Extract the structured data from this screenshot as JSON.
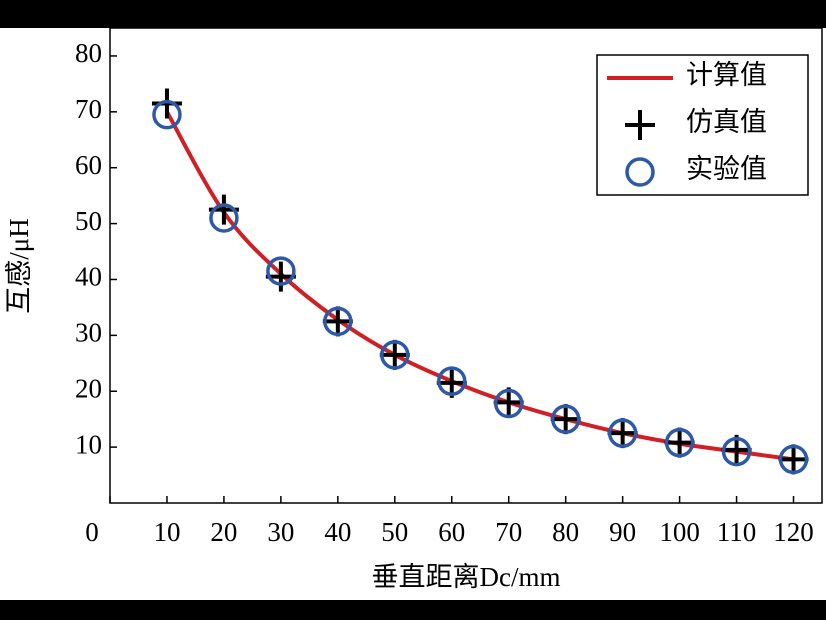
{
  "chart_data": {
    "type": "line",
    "x_label": "垂直距离Dc/mm",
    "y_label": "互感/μH",
    "x": [
      10,
      20,
      30,
      40,
      50,
      60,
      70,
      80,
      90,
      100,
      110,
      120
    ],
    "series": [
      {
        "name": "计算值",
        "color": "#d11f26",
        "marker": "line",
        "values": [
          70,
          52,
          41,
          32.8,
          26.5,
          21.8,
          18,
          15,
          12.5,
          10.6,
          9.2,
          7.8
        ]
      },
      {
        "name": "仿真值",
        "color": "#000000",
        "marker": "plus",
        "values": [
          71.5,
          52.5,
          40.5,
          32.5,
          26.5,
          21.5,
          18,
          15,
          12.5,
          10.8,
          9.5,
          7.8
        ]
      },
      {
        "name": "实验值",
        "color": "#2e59a8",
        "marker": "circle",
        "values": [
          69.5,
          51,
          41.5,
          32.5,
          26.5,
          21.8,
          17.8,
          15,
          12.5,
          10.8,
          9.2,
          7.8
        ]
      }
    ],
    "xlim": [
      0,
      125
    ],
    "ylim": [
      0,
      85
    ],
    "xticks": [
      0,
      10,
      20,
      30,
      40,
      50,
      60,
      70,
      80,
      90,
      100,
      110,
      120
    ],
    "yticks": [
      10,
      20,
      30,
      40,
      50,
      60,
      70,
      80
    ],
    "legend": "upper-right",
    "grid": false
  }
}
